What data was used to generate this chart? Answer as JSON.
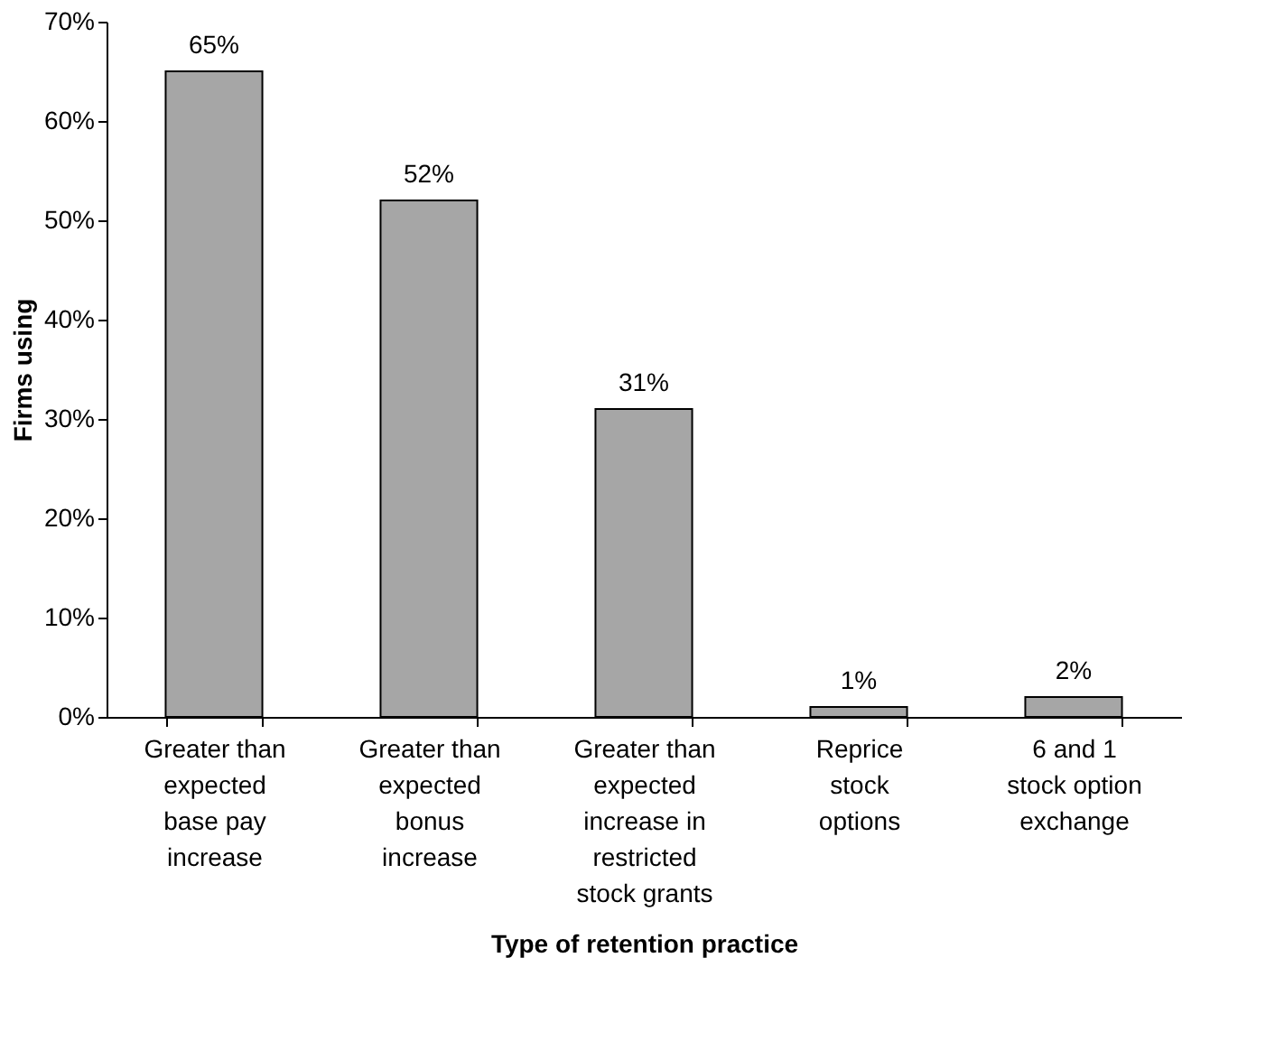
{
  "chart_data": {
    "type": "bar",
    "xlabel": "Type of retention practice",
    "ylabel": "Firms using",
    "categories": [
      "Greater than expected base pay increase",
      "Greater than expected bonus increase",
      "Greater than expected increase in restricted stock grants",
      "Reprice stock options",
      "6 and 1 stock option exchange"
    ],
    "values": [
      65,
      52,
      31,
      1,
      2
    ],
    "value_labels": [
      "65%",
      "52%",
      "31%",
      "1%",
      "2%"
    ],
    "color": "#a6a6a6",
    "ylim": [
      0,
      70
    ],
    "yticks": [
      {
        "value": 0,
        "label": "0%"
      },
      {
        "value": 10,
        "label": "10%"
      },
      {
        "value": 20,
        "label": "20%"
      },
      {
        "value": 30,
        "label": "30%"
      },
      {
        "value": 40,
        "label": "40%"
      },
      {
        "value": 50,
        "label": "50%"
      },
      {
        "value": 60,
        "label": "60%"
      },
      {
        "value": 70,
        "label": "70%"
      }
    ],
    "grid": false
  }
}
